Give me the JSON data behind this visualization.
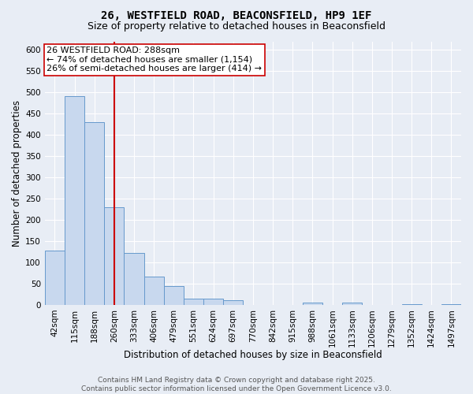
{
  "title_line1": "26, WESTFIELD ROAD, BEACONSFIELD, HP9 1EF",
  "title_line2": "Size of property relative to detached houses in Beaconsfield",
  "xlabel": "Distribution of detached houses by size in Beaconsfield",
  "ylabel": "Number of detached properties",
  "bin_labels": [
    "42sqm",
    "115sqm",
    "188sqm",
    "260sqm",
    "333sqm",
    "406sqm",
    "479sqm",
    "551sqm",
    "624sqm",
    "697sqm",
    "770sqm",
    "842sqm",
    "915sqm",
    "988sqm",
    "1061sqm",
    "1133sqm",
    "1206sqm",
    "1279sqm",
    "1352sqm",
    "1424sqm",
    "1497sqm"
  ],
  "bin_values": [
    128,
    492,
    430,
    230,
    122,
    67,
    44,
    15,
    15,
    10,
    0,
    0,
    0,
    5,
    0,
    5,
    0,
    0,
    2,
    0,
    2
  ],
  "bar_color": "#c8d8ee",
  "bar_edge_color": "#6699cc",
  "vline_color": "#cc0000",
  "annotation_text": "26 WESTFIELD ROAD: 288sqm\n← 74% of detached houses are smaller (1,154)\n26% of semi-detached houses are larger (414) →",
  "annotation_box_color": "#ffffff",
  "annotation_box_edge": "#cc0000",
  "ylim": [
    0,
    620
  ],
  "yticks": [
    0,
    50,
    100,
    150,
    200,
    250,
    300,
    350,
    400,
    450,
    500,
    550,
    600
  ],
  "footer_line1": "Contains HM Land Registry data © Crown copyright and database right 2025.",
  "footer_line2": "Contains public sector information licensed under the Open Government Licence v3.0.",
  "bg_color": "#e8edf5",
  "plot_bg_color": "#e8edf5",
  "grid_color": "#ffffff",
  "title_fontsize": 10,
  "subtitle_fontsize": 9,
  "axis_label_fontsize": 8.5,
  "tick_fontsize": 7.5,
  "annotation_fontsize": 8,
  "footer_fontsize": 6.5
}
